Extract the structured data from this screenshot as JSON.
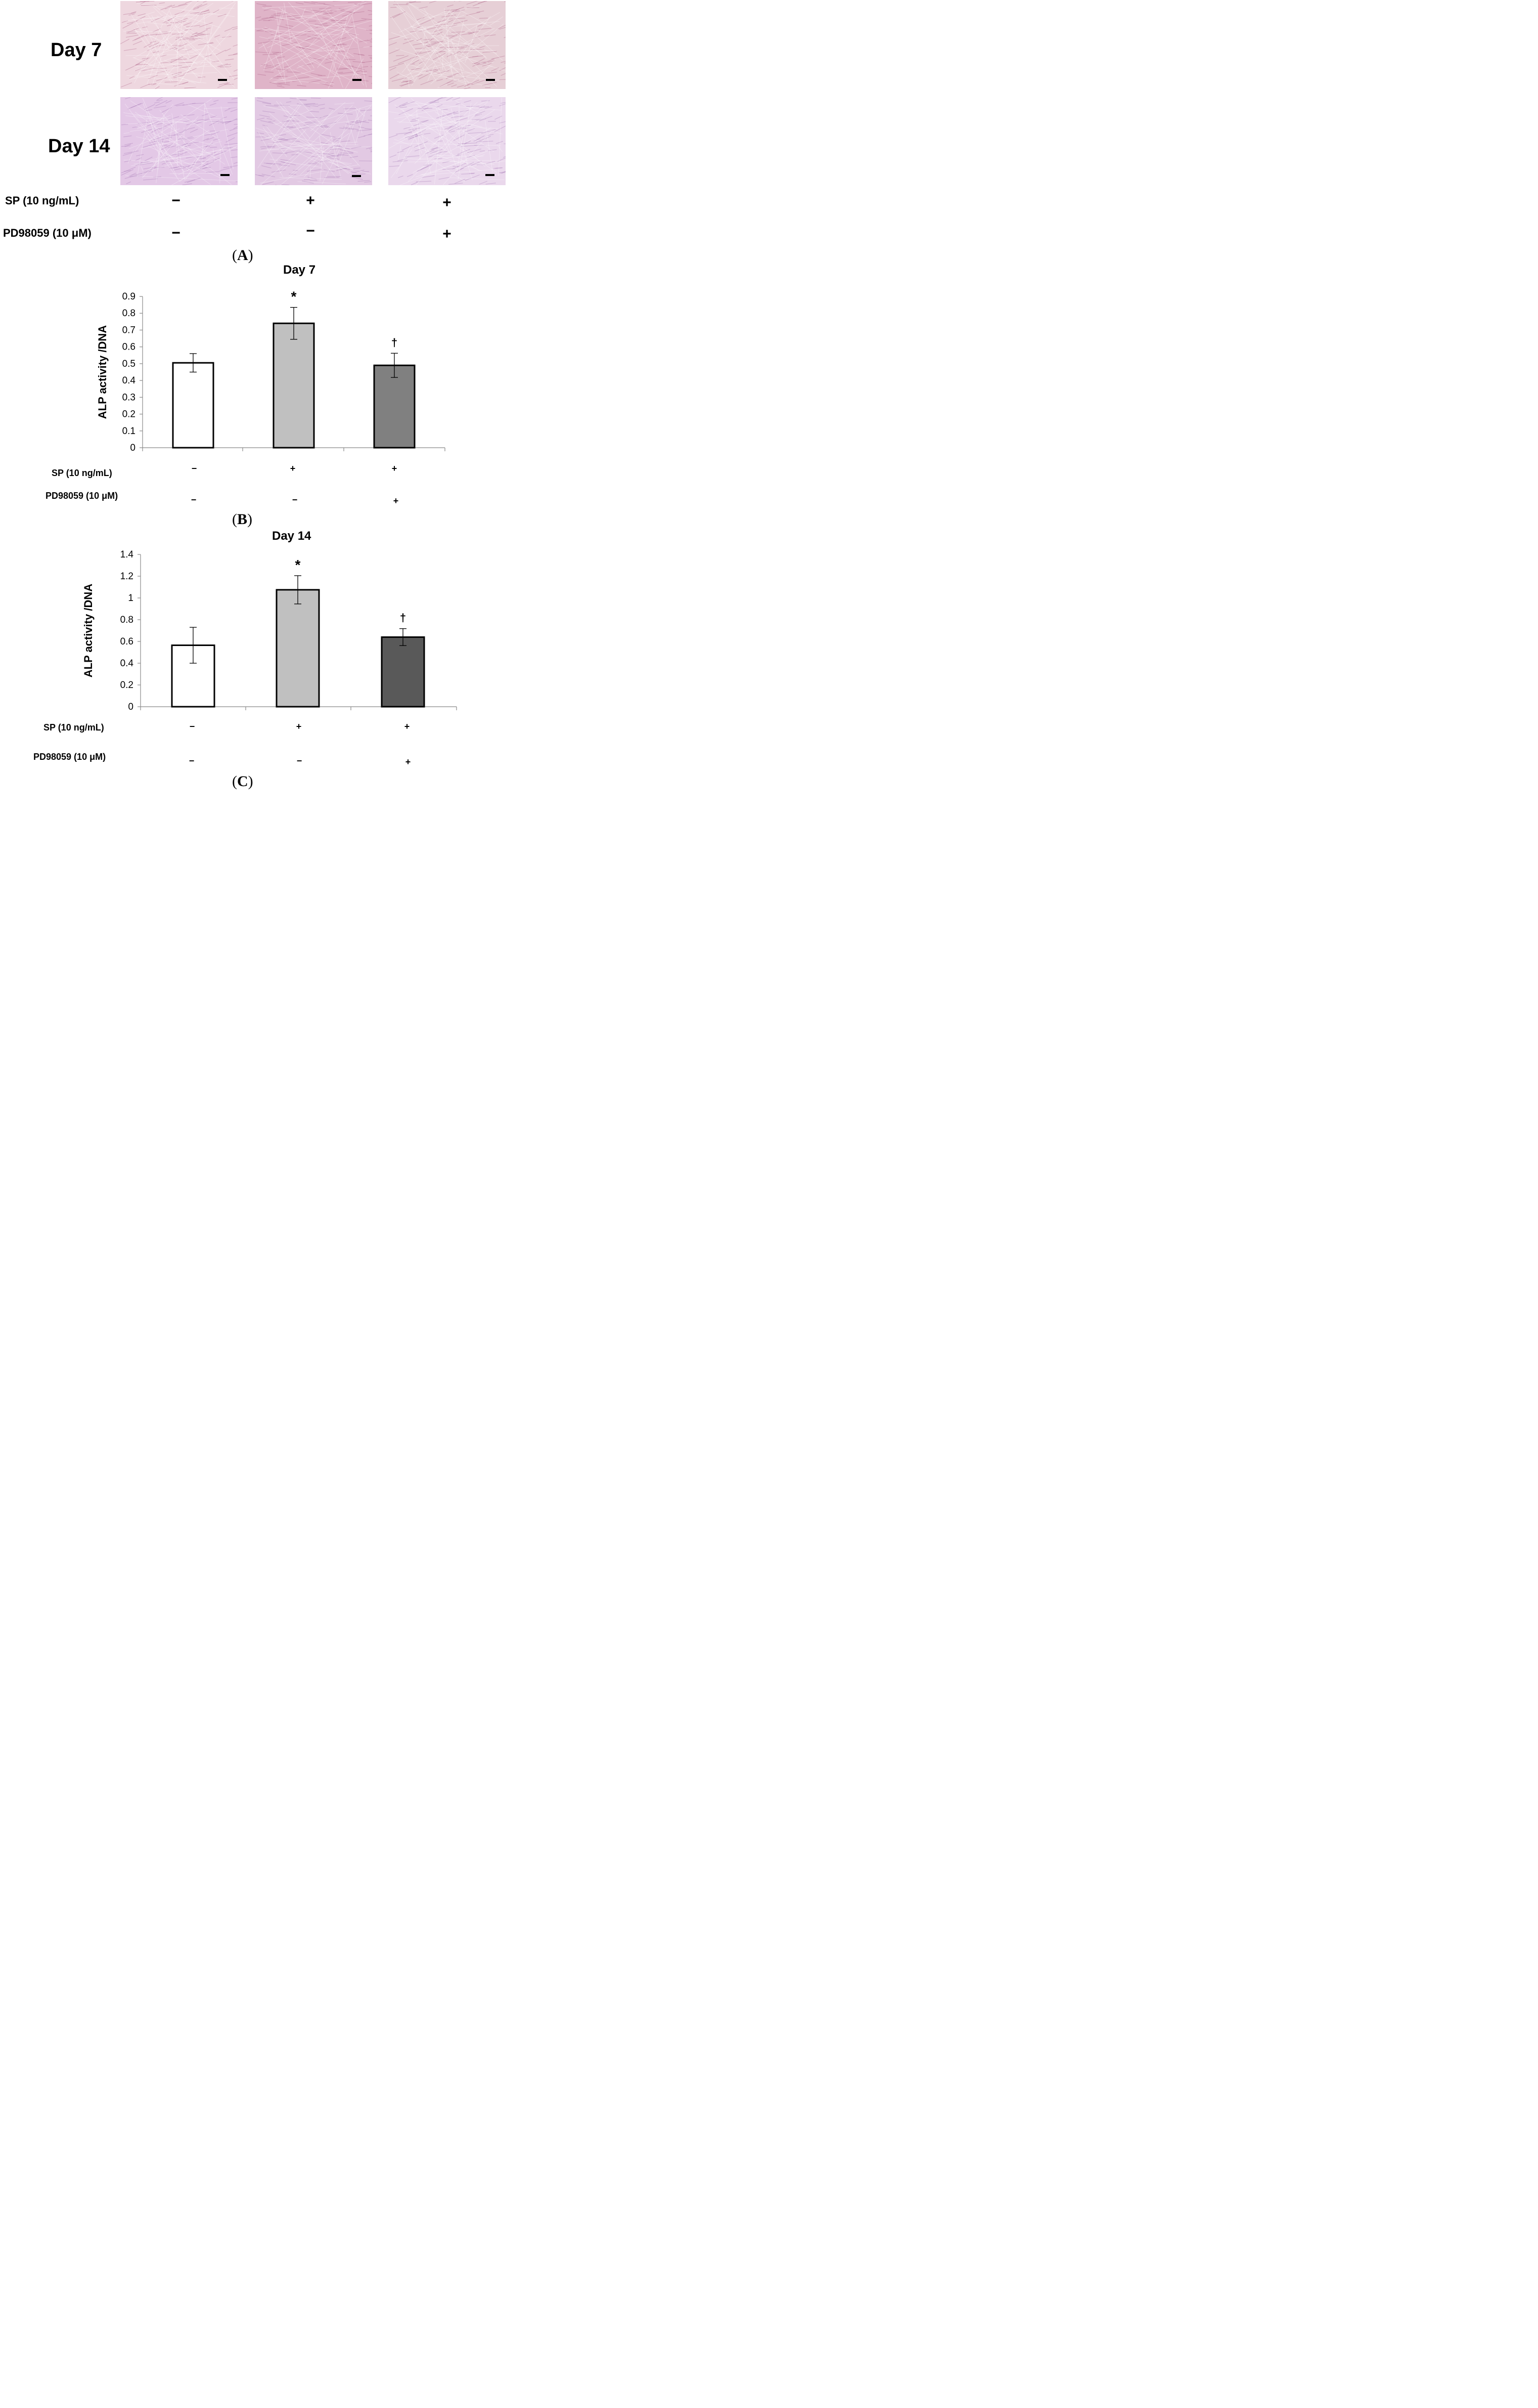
{
  "panel_a": {
    "rows": [
      {
        "label": "Day 7"
      },
      {
        "label": "Day 14"
      }
    ],
    "conditions": {
      "sp_label": "SP (10 ng/mL)",
      "pd_label": "PD98059 (10 μM)",
      "sp": [
        "−",
        "+",
        "+"
      ],
      "pd": [
        "−",
        "−",
        "+"
      ]
    },
    "letter": "A",
    "micrograph_colors": {
      "day7": [
        "#eed7df",
        "#dfb4c8",
        "#e6cfd6"
      ],
      "day14": [
        "#e3c8e6",
        "#e2c9e3",
        "#ead8ec"
      ]
    }
  },
  "panel_b": {
    "letter": "B",
    "conditions": {
      "sp_label": "SP (10 ng/mL)",
      "pd_label": "PD98059 (10 μM)",
      "sp": [
        "−",
        "+",
        "+"
      ],
      "pd": [
        "−",
        "−",
        "+"
      ]
    }
  },
  "panel_c": {
    "letter": "C",
    "conditions": {
      "sp_label": "SP (10 ng/mL)",
      "pd_label": "PD98059 (10 μM)",
      "sp": [
        "−",
        "+",
        "+"
      ],
      "pd": [
        "−",
        "−",
        "+"
      ]
    }
  },
  "chart_data": [
    {
      "type": "bar",
      "title": "Day 7",
      "ylabel": "ALP activity /DNA",
      "xlabel": "",
      "ylim": [
        0,
        0.9
      ],
      "yticks": [
        "0",
        "0.1",
        "0.2",
        "0.3",
        "0.4",
        "0.5",
        "0.6",
        "0.7",
        "0.8",
        "0.9"
      ],
      "tick_values": [
        0,
        0.1,
        0.2,
        0.3,
        0.4,
        0.5,
        0.6,
        0.7,
        0.8,
        0.9
      ],
      "grid": false,
      "bars": [
        {
          "value": 0.505,
          "error": 0.055,
          "color": "#ffffff",
          "marker": ""
        },
        {
          "value": 0.74,
          "error": 0.095,
          "color": "#c0c0c0",
          "marker": "*"
        },
        {
          "value": 0.49,
          "error": 0.072,
          "color": "#808080",
          "marker": "†"
        }
      ]
    },
    {
      "type": "bar",
      "title": "Day 14",
      "ylabel": "ALP activity /DNA",
      "xlabel": "",
      "ylim": [
        0,
        1.4
      ],
      "yticks": [
        "0",
        "0.2",
        "0.4",
        "0.6",
        "0.8",
        "1",
        "1.2",
        "1.4"
      ],
      "tick_values": [
        0,
        0.2,
        0.4,
        0.6,
        0.8,
        1.0,
        1.2,
        1.4
      ],
      "grid": false,
      "bars": [
        {
          "value": 0.565,
          "error": 0.165,
          "color": "#ffffff",
          "marker": ""
        },
        {
          "value": 1.075,
          "error": 0.13,
          "color": "#c0c0c0",
          "marker": "*"
        },
        {
          "value": 0.64,
          "error": 0.078,
          "color": "#595959",
          "marker": "†"
        }
      ]
    }
  ]
}
